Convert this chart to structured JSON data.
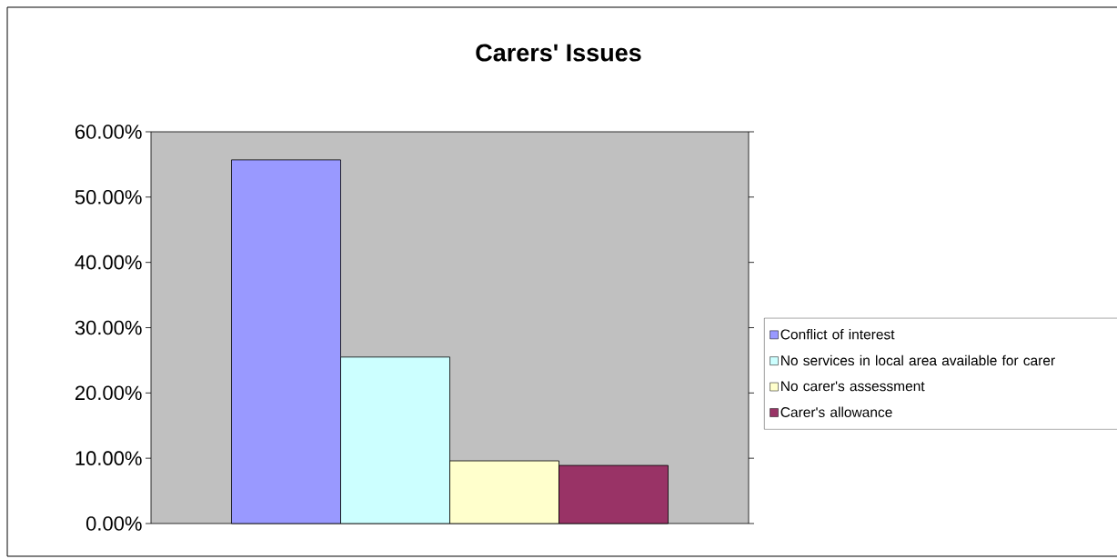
{
  "chart_data": {
    "type": "bar",
    "title": "Carers' Issues",
    "categories": [
      null
    ],
    "series": [
      {
        "name": "Conflict of interest",
        "color": "#9999ff",
        "values": [
          55.7
        ]
      },
      {
        "name": "No services in local area available for carer",
        "color": "#ccffff",
        "values": [
          25.5
        ]
      },
      {
        "name": "No carer's assessment",
        "color": "#ffffcc",
        "values": [
          9.6
        ]
      },
      {
        "name": "Carer's allowance",
        "color": "#993366",
        "values": [
          8.9
        ]
      }
    ],
    "ylim": [
      0,
      60
    ],
    "yticks": [
      {
        "value": 0,
        "label": "0.00%"
      },
      {
        "value": 10,
        "label": "10.00%"
      },
      {
        "value": 20,
        "label": "20.00%"
      },
      {
        "value": 30,
        "label": "30.00%"
      },
      {
        "value": 40,
        "label": "40.00%"
      },
      {
        "value": 50,
        "label": "50.00%"
      },
      {
        "value": 60,
        "label": "60.00%"
      }
    ],
    "legend": "right",
    "grid": false
  }
}
